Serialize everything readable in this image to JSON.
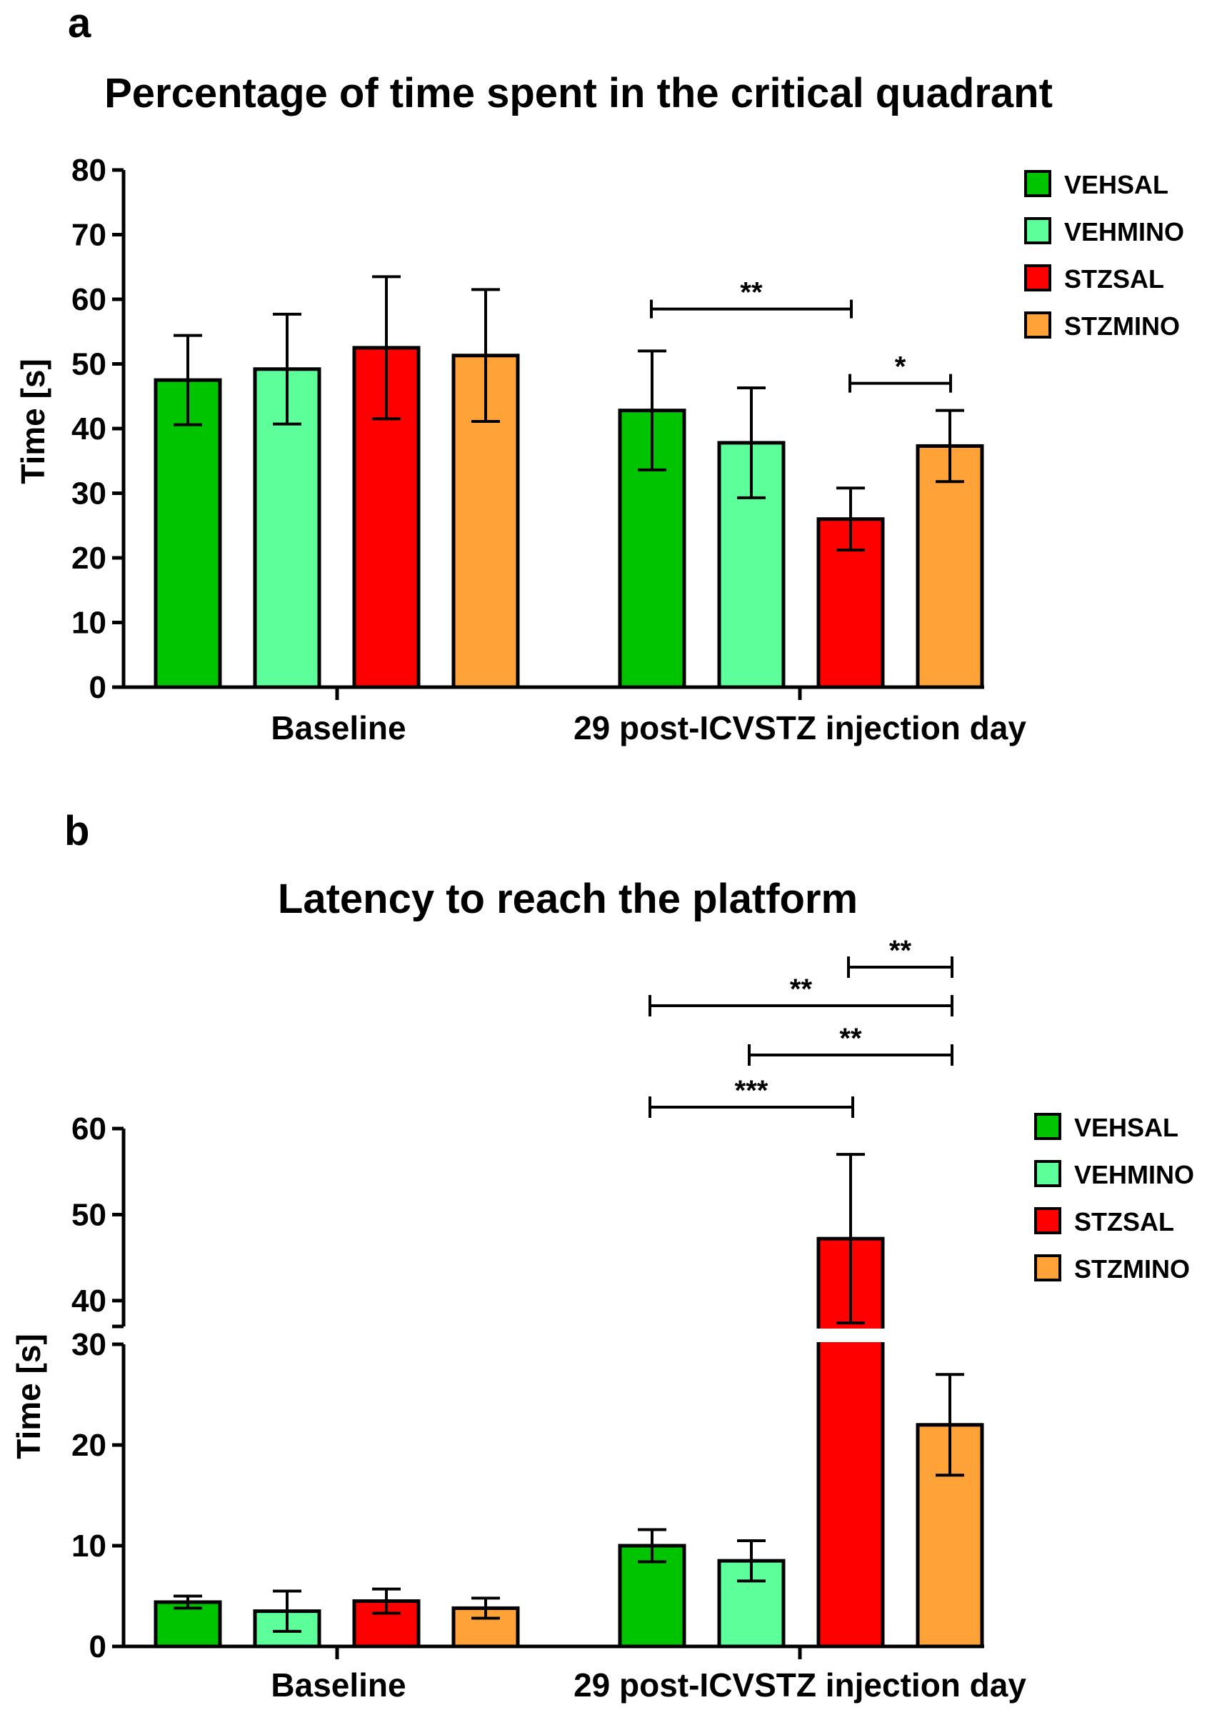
{
  "colors": {
    "VEHSAL": "#00c400",
    "VEHMINO": "#5dff9b",
    "STZSAL": "#ff0000",
    "STZMINO": "#ffa237"
  },
  "chart_data": [
    {
      "panel": "a",
      "type": "bar",
      "title": "Percentage of time spent in the critical quadrant",
      "xlabel": "",
      "ylabel": "Time [s]",
      "ylim": [
        0,
        80
      ],
      "yticks": [
        "0",
        "10",
        "20",
        "30",
        "40",
        "50",
        "60",
        "70",
        "80"
      ],
      "categories": [
        "Baseline",
        "29 post-ICVSTZ injection day"
      ],
      "series": [
        {
          "name": "VEHSAL",
          "values": [
            47.5,
            42.8
          ],
          "errors": [
            6.9,
            9.2
          ]
        },
        {
          "name": "VEHMINO",
          "values": [
            49.2,
            37.8
          ],
          "errors": [
            8.5,
            8.5
          ]
        },
        {
          "name": "STZSAL",
          "values": [
            52.5,
            26.0
          ],
          "errors": [
            11.0,
            4.8
          ]
        },
        {
          "name": "STZMINO",
          "values": [
            51.3,
            37.3
          ],
          "errors": [
            10.2,
            5.5
          ]
        }
      ],
      "legend": [
        "VEHSAL",
        "VEHMINO",
        "STZSAL",
        "STZMINO"
      ],
      "legend_position": "top-right",
      "annotations": [
        {
          "text": "**",
          "from": "VEHSAL",
          "to": "STZSAL",
          "group": "29 post-ICVSTZ injection day",
          "y": 58.5
        },
        {
          "text": "*",
          "from": "STZSAL",
          "to": "STZMINO",
          "group": "29 post-ICVSTZ injection day",
          "y": 47
        }
      ]
    },
    {
      "panel": "b",
      "type": "bar",
      "title": "Latency to reach the platform",
      "xlabel": "",
      "ylabel": "Time [s]",
      "ylim": [
        0,
        60
      ],
      "axis_break": [
        30,
        37
      ],
      "yticks": [
        "0",
        "10",
        "20",
        "30",
        "40",
        "50",
        "60"
      ],
      "categories": [
        "Baseline",
        "29 post-ICVSTZ injection day"
      ],
      "series": [
        {
          "name": "VEHSAL",
          "values": [
            4.4,
            10.0
          ],
          "errors": [
            0.6,
            1.6
          ]
        },
        {
          "name": "VEHMINO",
          "values": [
            3.5,
            8.5
          ],
          "errors": [
            2.0,
            2.0
          ]
        },
        {
          "name": "STZSAL",
          "values": [
            4.5,
            47.2
          ],
          "errors": [
            1.2,
            9.8
          ]
        },
        {
          "name": "STZMINO",
          "values": [
            3.8,
            22.0
          ],
          "errors": [
            1.0,
            5.0
          ]
        }
      ],
      "legend": [
        "VEHSAL",
        "VEHMINO",
        "STZSAL",
        "STZMINO"
      ],
      "legend_position": "top-right",
      "annotations": [
        {
          "text": "***",
          "from": "VEHSAL",
          "to": "STZSAL",
          "group": "29 post-ICVSTZ injection day"
        },
        {
          "text": "**",
          "from": "VEHMINO",
          "to": "STZMINO",
          "group": "29 post-ICVSTZ injection day"
        },
        {
          "text": "**",
          "from": "VEHSAL",
          "to": "STZMINO",
          "group": "29 post-ICVSTZ injection day"
        },
        {
          "text": "**",
          "from": "STZSAL",
          "to": "STZMINO",
          "group": "29 post-ICVSTZ injection day"
        }
      ]
    }
  ]
}
